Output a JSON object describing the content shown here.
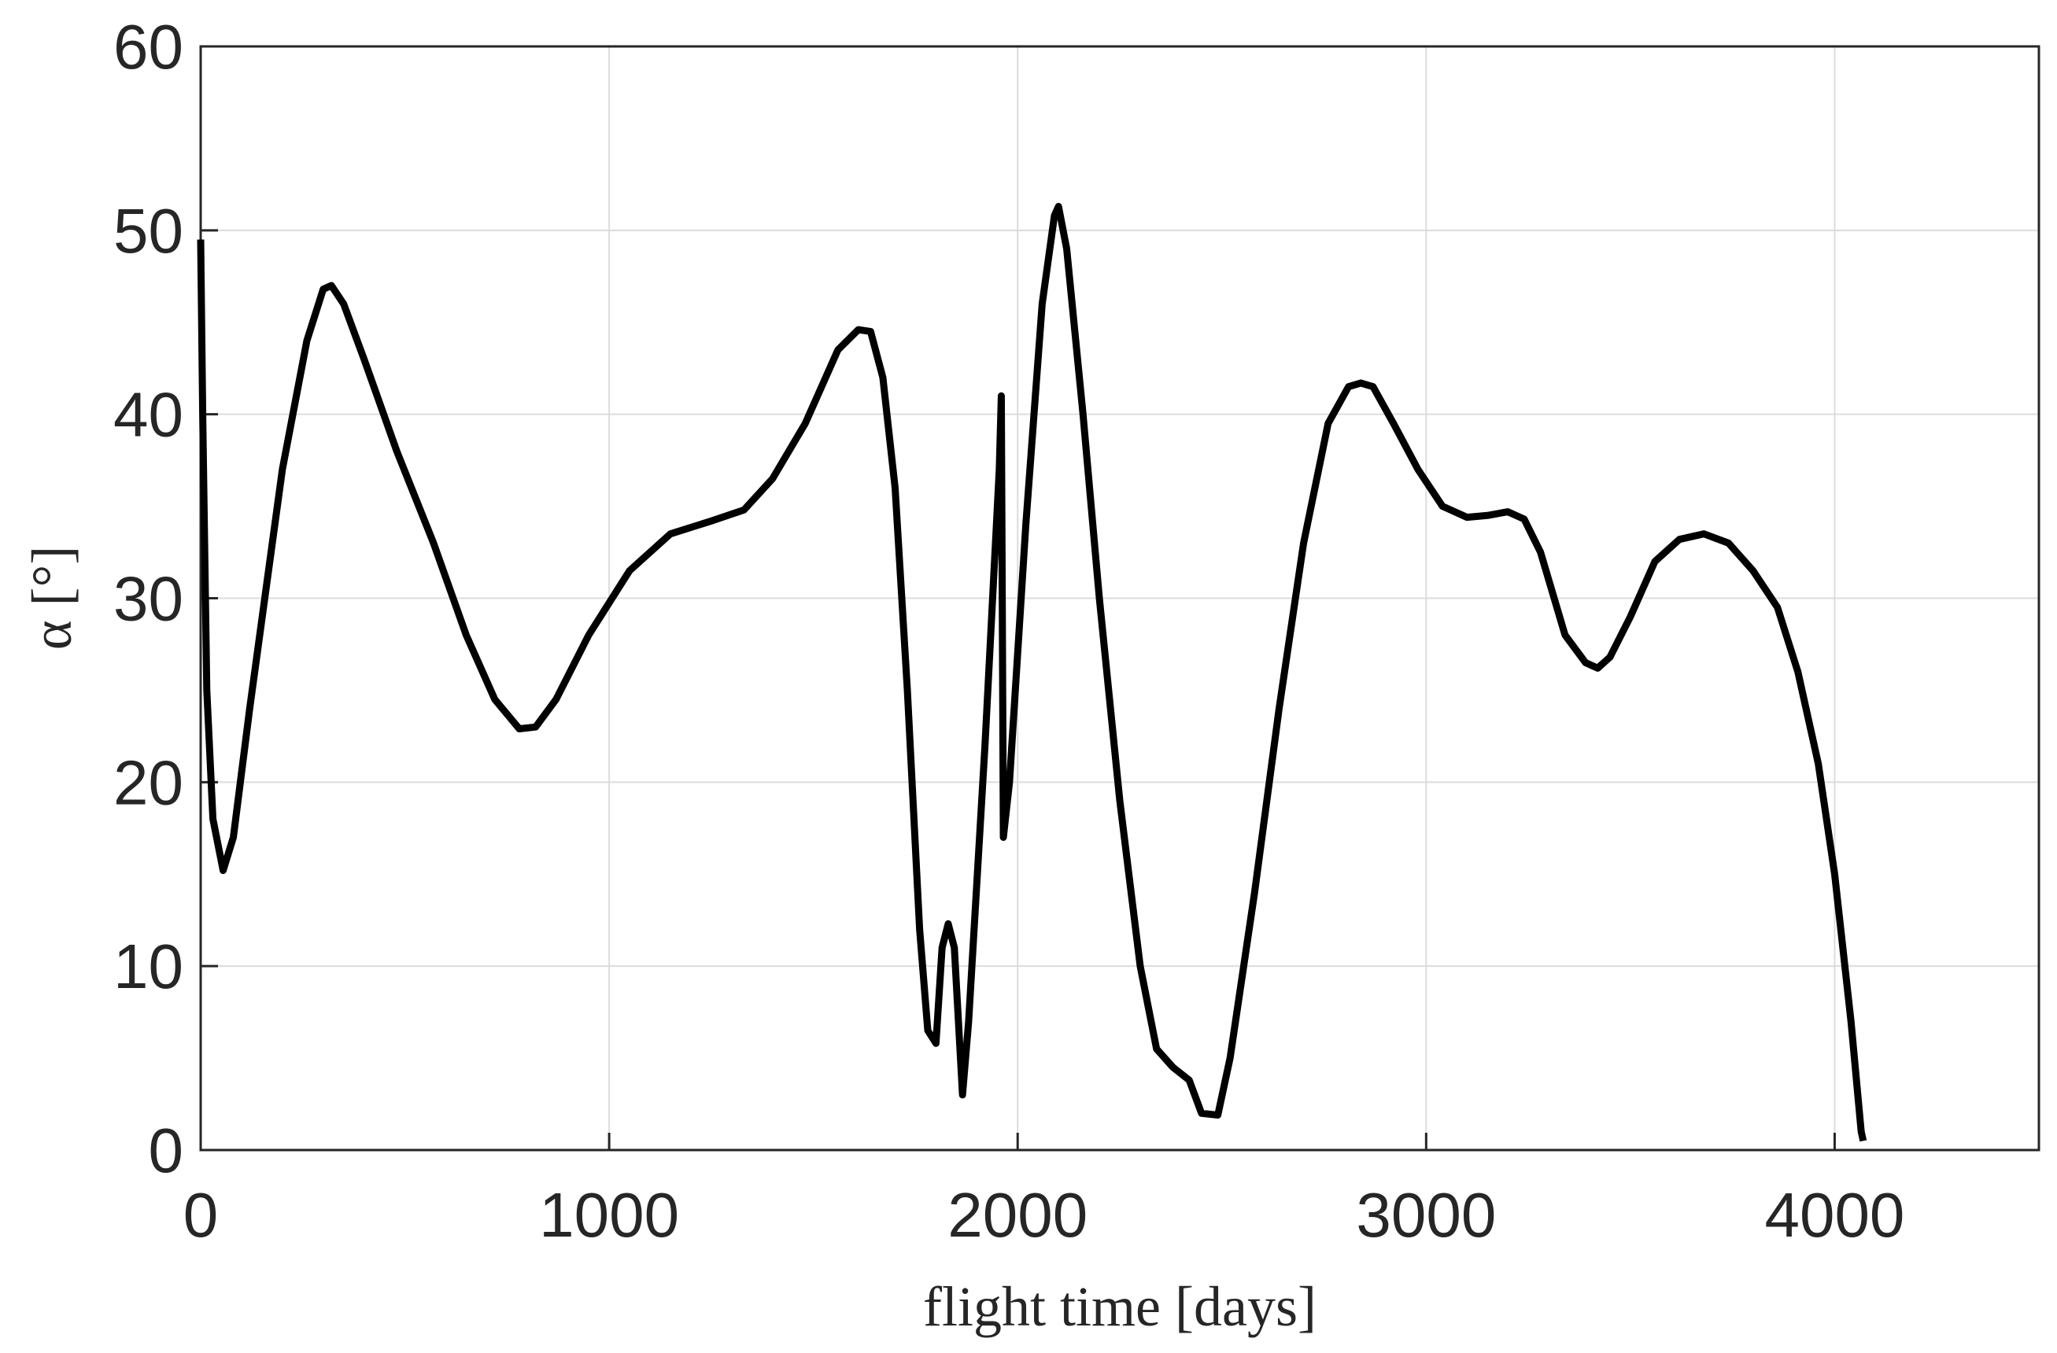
{
  "chart_data": {
    "type": "line",
    "xlabel": "flight time [days]",
    "ylabel": "α [°]",
    "xlim": [
      0,
      4500
    ],
    "xticks": [
      0,
      1000,
      2000,
      3000,
      4000
    ],
    "ylim": [
      0,
      60
    ],
    "yticks": [
      0,
      10,
      20,
      30,
      40,
      50,
      60
    ],
    "grid": true,
    "series": [
      {
        "color": "#000000",
        "x": [
          0,
          5,
          15,
          30,
          55,
          80,
          120,
          200,
          260,
          300,
          320,
          350,
          400,
          480,
          570,
          650,
          720,
          780,
          820,
          870,
          950,
          1050,
          1150,
          1250,
          1330,
          1400,
          1480,
          1560,
          1610,
          1640,
          1670,
          1700,
          1730,
          1760,
          1780,
          1800,
          1815,
          1830,
          1845,
          1865,
          1880,
          1920,
          1955,
          1960,
          1965,
          1980,
          2020,
          2060,
          2090,
          2100,
          2120,
          2160,
          2200,
          2250,
          2300,
          2340,
          2380,
          2420,
          2450,
          2490,
          2520,
          2580,
          2640,
          2700,
          2760,
          2810,
          2840,
          2870,
          2920,
          2980,
          3040,
          3100,
          3150,
          3200,
          3240,
          3280,
          3340,
          3390,
          3420,
          3450,
          3500,
          3560,
          3620,
          3680,
          3740,
          3800,
          3860,
          3910,
          3960,
          4000,
          4040,
          4065,
          4070
        ],
        "values": [
          49.5,
          40,
          25,
          18,
          15.2,
          17,
          24,
          37,
          44,
          46.8,
          47,
          46,
          43,
          38,
          33,
          28,
          24.5,
          22.9,
          23,
          24.5,
          28,
          31.5,
          33.5,
          34.2,
          34.8,
          36.5,
          39.5,
          43.5,
          44.6,
          44.5,
          42,
          36,
          25,
          12,
          6.5,
          5.8,
          11,
          12.3,
          11,
          3,
          7,
          22,
          37,
          41,
          17,
          20,
          34,
          46,
          50.8,
          51.3,
          49,
          40,
          30,
          19,
          10,
          5.5,
          4.5,
          3.8,
          2,
          1.9,
          5,
          14,
          24,
          33,
          39.5,
          41.5,
          41.7,
          41.5,
          39.5,
          37,
          35,
          34.4,
          34.5,
          34.7,
          34.3,
          32.5,
          28,
          26.5,
          26.2,
          26.8,
          29,
          32,
          33.2,
          33.5,
          33,
          31.5,
          29.5,
          26,
          21,
          15,
          7,
          1,
          0.5
        ]
      }
    ]
  }
}
